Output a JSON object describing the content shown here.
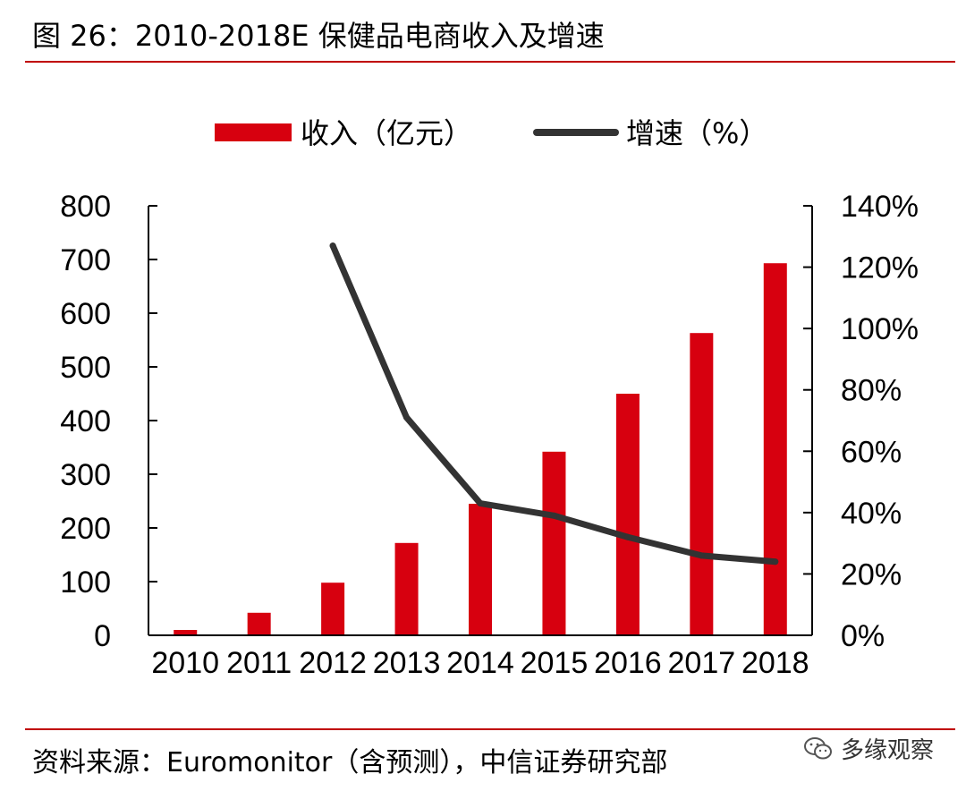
{
  "title": "图 26：2010-2018E 保健品电商收入及增速",
  "source": "资料来源：Euromonitor（含预测），中信证券研究部",
  "watermark": {
    "text": "多缘观察",
    "icon": "wechat-icon"
  },
  "colors": {
    "bar": "#d7000f",
    "line": "#333333",
    "rule": "#c00000"
  },
  "chart_data": {
    "type": "bar+line",
    "categories": [
      "2010",
      "2011",
      "2012",
      "2013",
      "2014",
      "2015",
      "2016",
      "2017",
      "2018"
    ],
    "series": [
      {
        "name": "收入（亿元）",
        "type": "bar",
        "axis": "left",
        "values": [
          10,
          42,
          98,
          172,
          245,
          342,
          450,
          563,
          693
        ]
      },
      {
        "name": "增速（%）",
        "type": "line",
        "axis": "right",
        "values": [
          null,
          null,
          127,
          71,
          43,
          39,
          32,
          26,
          24
        ]
      }
    ],
    "left_axis": {
      "min": 0,
      "max": 800,
      "ticks": [
        "0",
        "100",
        "200",
        "300",
        "400",
        "500",
        "600",
        "700",
        "800"
      ]
    },
    "right_axis": {
      "min": 0,
      "max": 140,
      "ticks": [
        "0%",
        "20%",
        "40%",
        "60%",
        "80%",
        "100%",
        "120%",
        "140%"
      ]
    },
    "legend_position": "top",
    "grid": false
  }
}
